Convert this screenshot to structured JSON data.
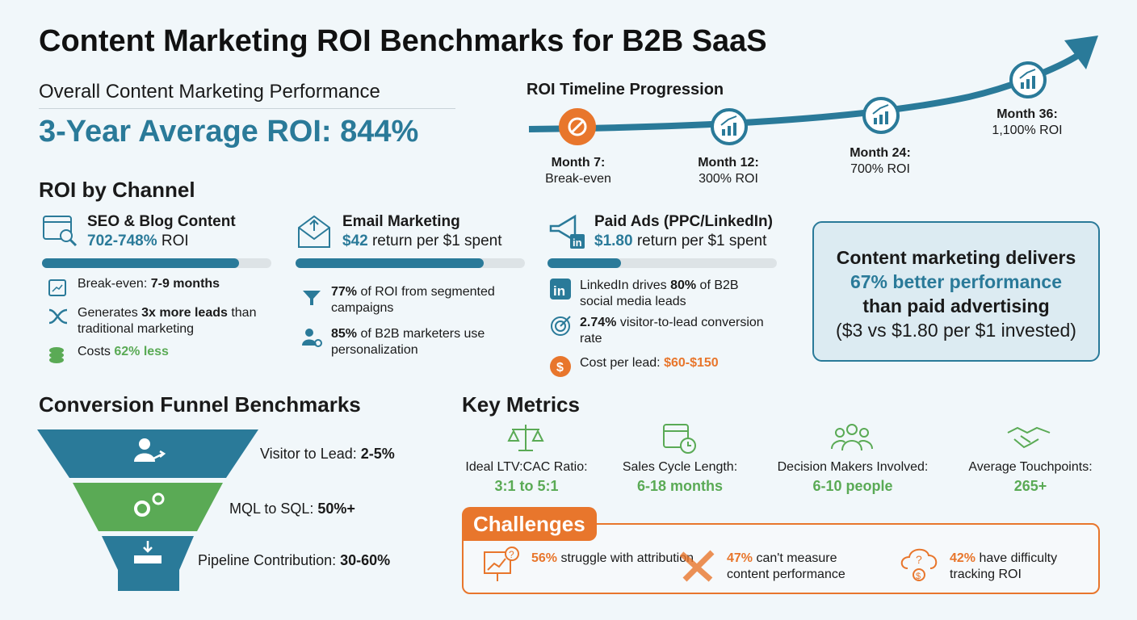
{
  "title": "Content Marketing ROI Benchmarks for B2B SaaS",
  "overall": {
    "heading": "Overall Content Marketing Performance",
    "roi": "3-Year Average ROI: 844%"
  },
  "timeline": {
    "heading": "ROI Timeline Progression",
    "milestones": [
      {
        "label": "Month 7:",
        "value": "Break-even",
        "icon": "no-entry-icon"
      },
      {
        "label": "Month 12:",
        "value": "300% ROI",
        "icon": "chart-up-icon"
      },
      {
        "label": "Month 24:",
        "value": "700% ROI",
        "icon": "chart-up-icon"
      },
      {
        "label": "Month 36:",
        "value": "1,100% ROI",
        "icon": "chart-up-icon"
      }
    ]
  },
  "channels": {
    "heading": "ROI by Channel",
    "items": [
      {
        "name": "SEO & Blog Content",
        "highlight": "702-748%",
        "rest": " ROI",
        "bar_fraction": 0.86,
        "icon": "browser-search-icon",
        "points": [
          {
            "icon": "calendar-chart-icon",
            "pre": "Break-even: ",
            "bold": "7-9 months",
            "post": ""
          },
          {
            "icon": "shuffle-arrows-icon",
            "pre": "Generates ",
            "bold": "3x more leads",
            "post": " than traditional marketing"
          },
          {
            "icon": "coins-icon",
            "pre": "Costs ",
            "bold": "62% less",
            "post": ""
          }
        ]
      },
      {
        "name": "Email Marketing",
        "highlight": "$42",
        "rest": " return per $1 spent",
        "bar_fraction": 0.82,
        "icon": "envelope-icon",
        "points": [
          {
            "icon": "funnel-icon",
            "pre": "",
            "bold": "77%",
            "post": " of ROI from segmented campaigns"
          },
          {
            "icon": "user-gear-icon",
            "pre": "",
            "bold": "85%",
            "post": " of B2B marketers use personalization"
          }
        ]
      },
      {
        "name": "Paid Ads (PPC/LinkedIn)",
        "highlight": "$1.80",
        "rest": " return per $1 spent",
        "bar_fraction": 0.32,
        "icon": "megaphone-icon",
        "points": [
          {
            "icon": "linkedin-icon",
            "pre": "LinkedIn drives ",
            "bold": "80%",
            "post": " of B2B social media leads"
          },
          {
            "icon": "target-icon",
            "pre": "",
            "bold": "2.74%",
            "post": " visitor-to-lead conversion rate"
          },
          {
            "icon": "dollar-icon",
            "pre": "Cost per lead: ",
            "bold": "$60-$150",
            "post": ""
          }
        ]
      }
    ]
  },
  "callout": {
    "line1": "Content marketing delivers",
    "line2": "67% better performance",
    "line3": "than paid advertising",
    "line4": "($3 vs $1.80 per $1 invested)"
  },
  "funnel": {
    "heading": "Conversion Funnel Benchmarks",
    "stages": [
      {
        "label": "Visitor to Lead: ",
        "value": "2-5%",
        "color": "#2a7a99",
        "icon": "user-arrow-icon"
      },
      {
        "label": "MQL to SQL: ",
        "value": "50%+",
        "color": "#5aaa55",
        "icon": "gears-icon"
      },
      {
        "label": "Pipeline Contribution: ",
        "value": "30-60%",
        "color": "#2a7a99",
        "icon": "pipeline-icon"
      }
    ]
  },
  "metrics": {
    "heading": "Key Metrics",
    "items": [
      {
        "label": "Ideal LTV:CAC Ratio:",
        "value": "3:1 to 5:1",
        "icon": "scale-icon"
      },
      {
        "label": "Sales Cycle Length:",
        "value": "6-18 months",
        "icon": "calendar-clock-icon"
      },
      {
        "label": "Decision Makers Involved:",
        "value": "6-10 people",
        "icon": "group-icon"
      },
      {
        "label": "Average Touchpoints:",
        "value": "265+",
        "icon": "handshake-icon"
      }
    ]
  },
  "challenges": {
    "heading": "Challenges",
    "items": [
      {
        "bold": "56%",
        "rest": " struggle with attribution",
        "icon": "presentation-question-icon"
      },
      {
        "bold": "47%",
        "rest": " can't measure content performance",
        "icon": "broken-ruler-icon"
      },
      {
        "bold": "42%",
        "rest": " have difficulty tracking ROI",
        "icon": "cloud-dollar-icon"
      }
    ]
  },
  "colors": {
    "teal": "#2a7a99",
    "orange": "#e8762c",
    "green": "#5aaa55"
  }
}
